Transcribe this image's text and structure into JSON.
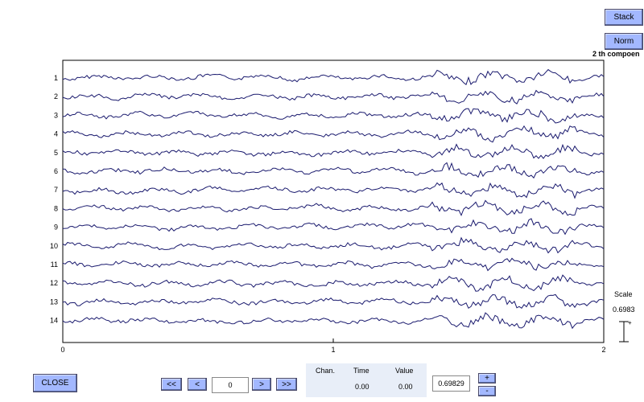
{
  "buttons": {
    "stack": "Stack",
    "norm": "Norm",
    "close": "CLOSE",
    "first": "<<",
    "prev": "<",
    "next": ">",
    "last": ">>",
    "plus": "+",
    "minus": "-"
  },
  "component_label": "2 th compoen",
  "plot": {
    "channels": [
      "1",
      "2",
      "3",
      "4",
      "5",
      "6",
      "7",
      "8",
      "9",
      "10",
      "11",
      "12",
      "13",
      "14"
    ],
    "x_ticks": [
      "0",
      "1",
      "2"
    ],
    "xlim": [
      0,
      2
    ],
    "line_color": "#1a1a6e"
  },
  "scale": {
    "label": "Scale",
    "value": "0.6983"
  },
  "readout": {
    "chan_header": "Chan.",
    "time_header": "Time",
    "value_header": "Value",
    "time_value": "0.00",
    "value_value": "0.00"
  },
  "page_field": "0",
  "scale_field": "0.69829"
}
